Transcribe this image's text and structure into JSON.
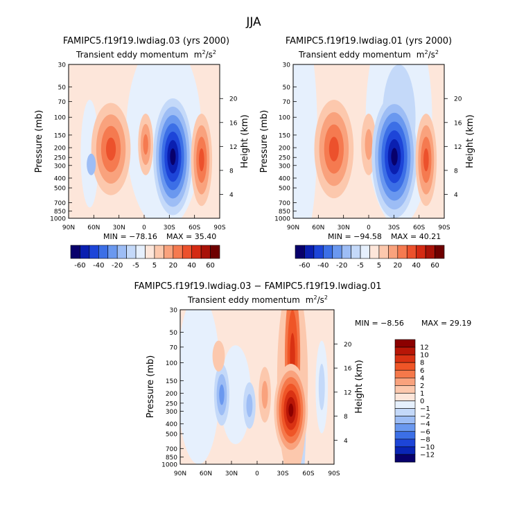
{
  "season": "JJA",
  "colorbar_top": {
    "labels": [
      "-60",
      "-40",
      "-20",
      "-5",
      "5",
      "20",
      "40",
      "60"
    ],
    "colors": [
      "#08006b",
      "#0a1fb0",
      "#1d45d8",
      "#3c6fe6",
      "#6a98ef",
      "#9dbdf5",
      "#c4d9f9",
      "#e6f0fd",
      "#fde6da",
      "#fcc8ad",
      "#f9a27d",
      "#f57a50",
      "#ec512c",
      "#d42a13",
      "#a81208",
      "#6e0000"
    ]
  },
  "colorbar_diff": {
    "labels": [
      "12",
      "10",
      "8",
      "6",
      "4",
      "2",
      "1",
      "0",
      "−1",
      "−2",
      "−4",
      "−6",
      "−8",
      "−10",
      "−12"
    ],
    "colors": [
      "#8b0000",
      "#b81607",
      "#d93213",
      "#ef5527",
      "#f5784a",
      "#f9a27d",
      "#fcc8ad",
      "#fde6da",
      "#e6f0fd",
      "#c4d9f9",
      "#9dbdf5",
      "#6a98ef",
      "#3c6fe6",
      "#1d45d8",
      "#0a25b5",
      "#08006b"
    ]
  },
  "chart_data": [
    {
      "type": "contour",
      "title": "FAMIPC5.f19f19.lwdiag.03 (yrs 2000)",
      "subtitle": "Transient eddy momentum",
      "units": "m²/s²",
      "units_base": "m",
      "units_mid": "/s",
      "sup": "2",
      "xlabel": "",
      "ylabel": "Pressure (mb)",
      "y2label": "Height (km)",
      "x_ticks": [
        "90N",
        "60N",
        "30N",
        "0",
        "30S",
        "60S",
        "90S"
      ],
      "y_ticks": [
        "30",
        "50",
        "70",
        "100",
        "150",
        "200",
        "250",
        "300",
        "400",
        "500",
        "700",
        "850",
        "1000"
      ],
      "y2_ticks": [
        "20",
        "16",
        "12",
        "8",
        "4"
      ],
      "min_label": "MIN = −78.16",
      "max_label": "MAX =  35.40",
      "min": -78.16,
      "max": 35.4
    },
    {
      "type": "contour",
      "title": "FAMIPC5.f19f19.lwdiag.01 (yrs 2000)",
      "subtitle": "Transient eddy momentum",
      "units": "m²/s²",
      "units_base": "m",
      "units_mid": "/s",
      "sup": "2",
      "xlabel": "",
      "ylabel": "Pressure (mb)",
      "y2label": "Height (km)",
      "x_ticks": [
        "90N",
        "60N",
        "30N",
        "0",
        "30S",
        "60S",
        "90S"
      ],
      "y_ticks": [
        "30",
        "50",
        "70",
        "100",
        "150",
        "200",
        "250",
        "300",
        "400",
        "500",
        "700",
        "850",
        "1000"
      ],
      "y2_ticks": [
        "20",
        "16",
        "12",
        "8",
        "4"
      ],
      "min_label": "MIN = −94.58",
      "max_label": "MAX =  40.21",
      "min": -94.58,
      "max": 40.21
    },
    {
      "type": "contour",
      "title": "FAMIPC5.f19f19.lwdiag.03 − FAMIPC5.f19f19.lwdiag.01",
      "subtitle": "Transient eddy momentum",
      "units": "m²/s²",
      "units_base": "m",
      "units_mid": "/s",
      "sup": "2",
      "xlabel": "",
      "ylabel": "Pressure (mb)",
      "y2label": "Height (km)",
      "x_ticks": [
        "90N",
        "60N",
        "30N",
        "0",
        "30S",
        "60S",
        "90S"
      ],
      "y_ticks": [
        "30",
        "50",
        "70",
        "100",
        "150",
        "200",
        "250",
        "300",
        "400",
        "500",
        "700",
        "850",
        "1000"
      ],
      "y2_ticks": [
        "20",
        "16",
        "12",
        "8",
        "4"
      ],
      "min_label": "MIN =   −8.56",
      "max_label": "MAX =  29.19",
      "min": -8.56,
      "max": 29.19
    }
  ]
}
